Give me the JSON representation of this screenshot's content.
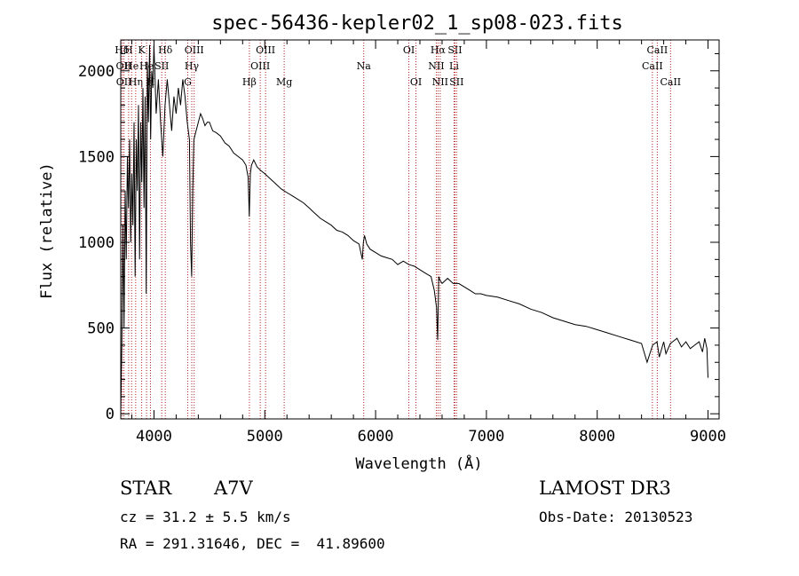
{
  "chart_data": {
    "type": "line",
    "title": "spec-56436-kepler02_1_sp08-023.fits",
    "xlabel": "Wavelength (Å)",
    "ylabel": "Flux (relative)",
    "xlim": [
      3700,
      9100
    ],
    "ylim": [
      -30,
      2180
    ],
    "x_ticks": [
      4000,
      5000,
      6000,
      7000,
      8000,
      9000
    ],
    "y_ticks": [
      0,
      500,
      1000,
      1500,
      2000
    ],
    "grid": false,
    "series": [
      {
        "name": "flux",
        "x": [
          3700,
          3710,
          3720,
          3730,
          3740,
          3750,
          3760,
          3770,
          3780,
          3790,
          3800,
          3810,
          3820,
          3830,
          3840,
          3850,
          3860,
          3870,
          3880,
          3890,
          3900,
          3910,
          3920,
          3930,
          3940,
          3950,
          3960,
          3970,
          3980,
          3990,
          4000,
          4020,
          4040,
          4060,
          4080,
          4100,
          4120,
          4140,
          4160,
          4180,
          4200,
          4220,
          4240,
          4260,
          4280,
          4300,
          4320,
          4330,
          4340,
          4350,
          4360,
          4380,
          4400,
          4420,
          4440,
          4460,
          4480,
          4500,
          4530,
          4560,
          4600,
          4640,
          4680,
          4720,
          4760,
          4800,
          4830,
          4850,
          4860,
          4870,
          4880,
          4900,
          4930,
          4960,
          5000,
          5050,
          5100,
          5150,
          5200,
          5250,
          5300,
          5350,
          5400,
          5450,
          5500,
          5550,
          5600,
          5650,
          5700,
          5750,
          5800,
          5850,
          5880,
          5890,
          5900,
          5920,
          5950,
          6000,
          6050,
          6100,
          6150,
          6200,
          6250,
          6300,
          6350,
          6400,
          6450,
          6500,
          6530,
          6550,
          6560,
          6570,
          6580,
          6600,
          6650,
          6700,
          6750,
          6800,
          6850,
          6900,
          6950,
          7000,
          7100,
          7200,
          7300,
          7400,
          7500,
          7600,
          7700,
          7800,
          7900,
          8000,
          8100,
          8200,
          8300,
          8400,
          8450,
          8500,
          8540,
          8560,
          8600,
          8620,
          8660,
          8680,
          8720,
          8760,
          8800,
          8840,
          8880,
          8920,
          8950,
          8970,
          8990,
          9000
        ],
        "y": [
          0,
          400,
          1100,
          500,
          1300,
          900,
          1500,
          1200,
          1600,
          1000,
          1400,
          1100,
          1700,
          800,
          1600,
          1300,
          1800,
          900,
          1700,
          1350,
          1900,
          1200,
          1850,
          700,
          2050,
          1700,
          2150,
          1600,
          2000,
          1900,
          2150,
          1750,
          1950,
          1700,
          1500,
          1800,
          1950,
          1800,
          1650,
          1850,
          1750,
          1900,
          1800,
          1950,
          1850,
          1700,
          1600,
          1000,
          800,
          1300,
          1600,
          1650,
          1700,
          1750,
          1720,
          1680,
          1700,
          1700,
          1650,
          1640,
          1620,
          1580,
          1560,
          1520,
          1500,
          1480,
          1450,
          1380,
          1150,
          1400,
          1450,
          1480,
          1440,
          1420,
          1400,
          1370,
          1340,
          1310,
          1290,
          1270,
          1250,
          1230,
          1200,
          1170,
          1140,
          1120,
          1100,
          1070,
          1060,
          1040,
          1010,
          990,
          900,
          1000,
          1040,
          990,
          960,
          940,
          920,
          910,
          900,
          870,
          890,
          870,
          860,
          840,
          820,
          800,
          720,
          620,
          430,
          800,
          780,
          760,
          790,
          760,
          760,
          740,
          720,
          700,
          700,
          690,
          680,
          660,
          640,
          610,
          590,
          560,
          540,
          520,
          510,
          490,
          470,
          450,
          430,
          410,
          300,
          400,
          420,
          330,
          420,
          350,
          410,
          420,
          440,
          390,
          420,
          380,
          400,
          420,
          360,
          440,
          380,
          210
        ]
      }
    ],
    "spectral_lines": [
      {
        "label": "Hδ",
        "wl": 3711,
        "row": 0
      },
      {
        "label": "OII",
        "wl": 3727,
        "row": 1
      },
      {
        "label": "OII",
        "wl": 3729,
        "row": 2
      },
      {
        "label": "H",
        "wl": 3771,
        "row": 0
      },
      {
        "label": "He",
        "wl": 3798,
        "row": 1
      },
      {
        "label": "Hη",
        "wl": 3835,
        "row": 2
      },
      {
        "label": "K",
        "wl": 3889,
        "row": 0
      },
      {
        "label": "He",
        "wl": 3933,
        "row": 1
      },
      {
        "label": "H",
        "wl": 3968,
        "row": 2
      },
      {
        "label": "Hδ",
        "wl": 4102,
        "row": 0
      },
      {
        "label": "SII",
        "wl": 4070,
        "row": 1
      },
      {
        "label": "OIII",
        "wl": 4363,
        "row": 0
      },
      {
        "label": "Hγ",
        "wl": 4341,
        "row": 1
      },
      {
        "label": "G",
        "wl": 4305,
        "row": 2
      },
      {
        "label": "OIII",
        "wl": 5007,
        "row": 0
      },
      {
        "label": "OIII",
        "wl": 4959,
        "row": 1
      },
      {
        "label": "Hβ",
        "wl": 4861,
        "row": 2
      },
      {
        "label": "Mg",
        "wl": 5175,
        "row": 2
      },
      {
        "label": "Na",
        "wl": 5893,
        "row": 1
      },
      {
        "label": "OI",
        "wl": 6300,
        "row": 0
      },
      {
        "label": "OI",
        "wl": 6364,
        "row": 2
      },
      {
        "label": "Hα",
        "wl": 6563,
        "row": 0
      },
      {
        "label": "NII",
        "wl": 6548,
        "row": 1
      },
      {
        "label": "NII",
        "wl": 6583,
        "row": 2
      },
      {
        "label": "SII",
        "wl": 6716,
        "row": 0
      },
      {
        "label": "Li",
        "wl": 6708,
        "row": 1
      },
      {
        "label": "SII",
        "wl": 6731,
        "row": 2
      },
      {
        "label": "CaII",
        "wl": 8542,
        "row": 0
      },
      {
        "label": "CaII",
        "wl": 8498,
        "row": 1
      },
      {
        "label": "CaII",
        "wl": 8662,
        "row": 2
      }
    ]
  },
  "info": {
    "class_label": "STAR",
    "subclass": "A7V",
    "survey": "LAMOST DR3",
    "cz": "cz = 31.2 ± 5.5 km/s",
    "obs_date": "Obs-Date: 20130523",
    "radec": "RA = 291.31646, DEC =  41.89600"
  }
}
